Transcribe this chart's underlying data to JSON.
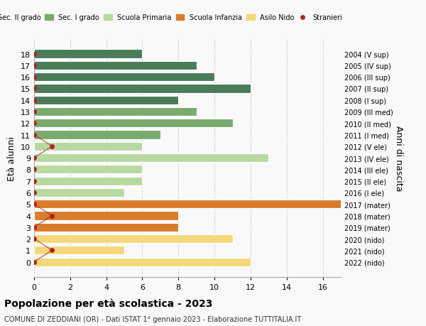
{
  "ages": [
    18,
    17,
    16,
    15,
    14,
    13,
    12,
    11,
    10,
    9,
    8,
    7,
    6,
    5,
    4,
    3,
    2,
    1,
    0
  ],
  "right_labels": [
    "2004 (V sup)",
    "2005 (IV sup)",
    "2006 (III sup)",
    "2007 (II sup)",
    "2008 (I sup)",
    "2009 (III med)",
    "2010 (II med)",
    "2011 (I med)",
    "2012 (V ele)",
    "2013 (IV ele)",
    "2014 (III ele)",
    "2015 (II ele)",
    "2016 (I ele)",
    "2017 (mater)",
    "2018 (mater)",
    "2019 (mater)",
    "2020 (nido)",
    "2021 (nido)",
    "2022 (nido)"
  ],
  "bar_values": [
    6,
    9,
    10,
    12,
    8,
    9,
    11,
    7,
    6,
    13,
    6,
    6,
    5,
    17,
    8,
    8,
    11,
    5,
    12
  ],
  "bar_colors": [
    "#4a7c59",
    "#4a7c59",
    "#4a7c59",
    "#4a7c59",
    "#4a7c59",
    "#7aaa6e",
    "#7aaa6e",
    "#7aaa6e",
    "#b8d9a0",
    "#b8d9a0",
    "#b8d9a0",
    "#b8d9a0",
    "#b8d9a0",
    "#d97c2b",
    "#d97c2b",
    "#d97c2b",
    "#f5d87a",
    "#f5d87a",
    "#f5d87a"
  ],
  "stranieri_x": [
    0,
    0,
    0,
    0,
    0,
    0,
    0,
    0,
    1,
    0,
    0,
    0,
    0,
    0,
    1,
    0,
    0,
    1,
    0
  ],
  "stranieri_color": "#b22222",
  "legend_labels": [
    "Sec. II grado",
    "Sec. I grado",
    "Scuola Primaria",
    "Scuola Infanzia",
    "Asilo Nido",
    "Stranieri"
  ],
  "legend_colors": [
    "#4a7c59",
    "#7aaa6e",
    "#b8d9a0",
    "#d97c2b",
    "#f5d87a",
    "#b22222"
  ],
  "ylabel_left": "Età alunni",
  "ylabel_right": "Anni di nascita",
  "title": "Popolazione per età scolastica - 2023",
  "subtitle": "COMUNE DI ZEDDIANI (OR) - Dati ISTAT 1° gennaio 2023 - Elaborazione TUTTITALIA.IT",
  "xlim": [
    0,
    17
  ],
  "bg_color": "#f9f9f9",
  "grid_color": "#cccccc"
}
